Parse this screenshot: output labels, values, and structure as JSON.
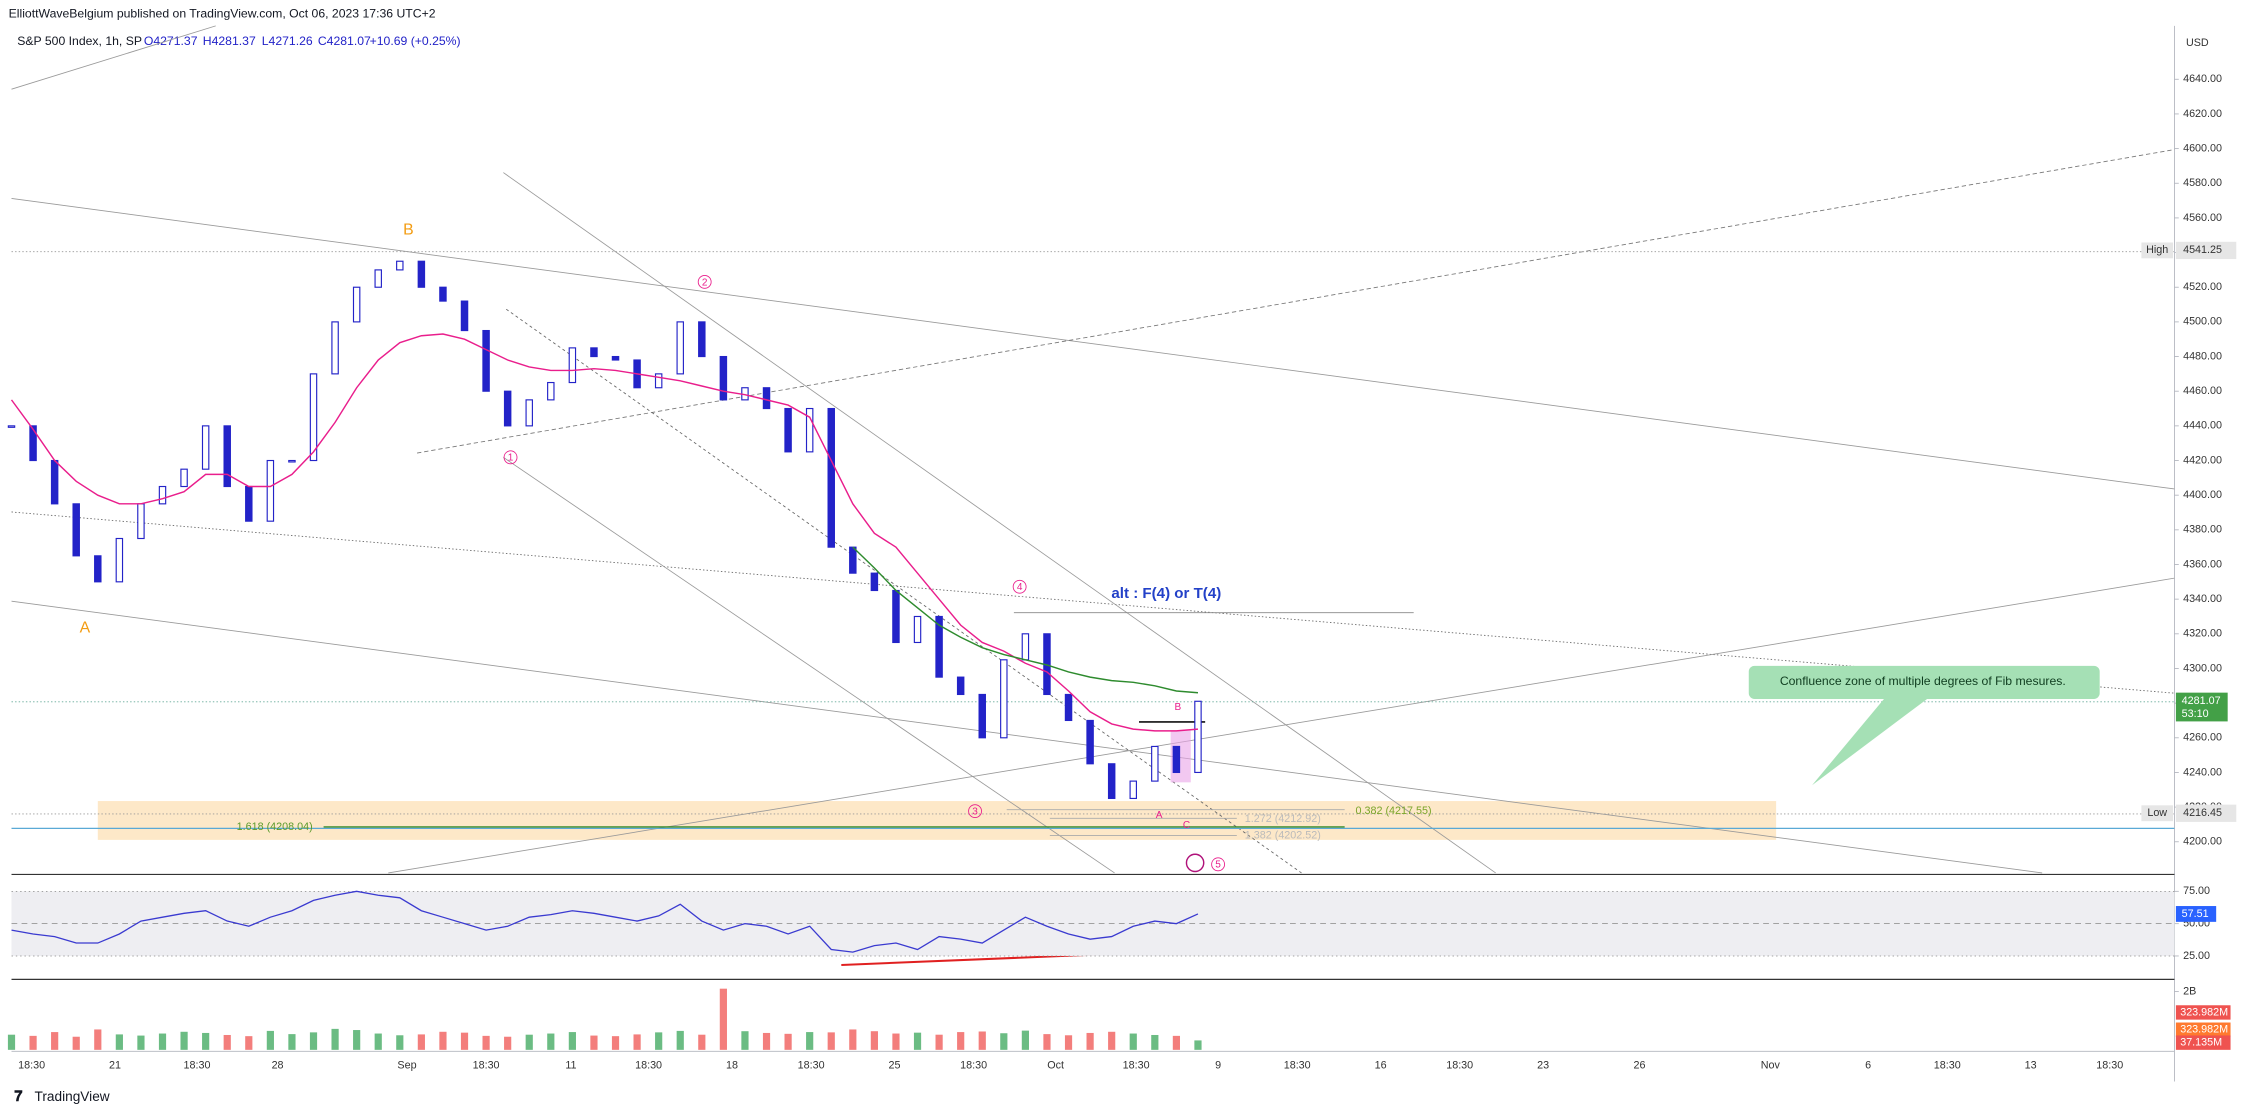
{
  "header": {
    "publisher": "ElliottWaveBelgium published on TradingView.com, Oct 06, 2023 17:36 UTC+2",
    "symbol": "S&P 500 Index, 1h, SP",
    "open": "O4271.37",
    "high": "H4281.37",
    "low": "L4271.26",
    "close": "C4281.07",
    "change": "+10.69 (+0.25%)"
  },
  "chart_data": [
    {
      "type": "candlestick",
      "currency": "USD",
      "ylim": [
        4182,
        4665
      ],
      "yticks": [
        {
          "value": 4200,
          "label": "4200.00"
        },
        {
          "value": 4220,
          "label": "4220.00"
        },
        {
          "value": 4240,
          "label": "4240.00"
        },
        {
          "value": 4260,
          "label": "4260.00"
        },
        {
          "value": 4280,
          "label": "4280.00"
        },
        {
          "value": 4300,
          "label": "4300.00"
        },
        {
          "value": 4320,
          "label": "4320.00"
        },
        {
          "value": 4340,
          "label": "4340.00"
        },
        {
          "value": 4360,
          "label": "4360.00"
        },
        {
          "value": 4380,
          "label": "4380.00"
        },
        {
          "value": 4400,
          "label": "4400.00"
        },
        {
          "value": 4420,
          "label": "4420.00"
        },
        {
          "value": 4440,
          "label": "4440.00"
        },
        {
          "value": 4460,
          "label": "4460.00"
        },
        {
          "value": 4480,
          "label": "4480.00"
        },
        {
          "value": 4500,
          "label": "4500.00"
        },
        {
          "value": 4520,
          "label": "4520.00"
        },
        {
          "value": 4540,
          "label": "4540.00"
        },
        {
          "value": 4560,
          "label": "4560.00"
        },
        {
          "value": 4580,
          "label": "4580.00"
        },
        {
          "value": 4600,
          "label": "4600.00"
        },
        {
          "value": 4620,
          "label": "4620.00"
        },
        {
          "value": 4640,
          "label": "4640.00"
        }
      ],
      "x_labels": [
        "18:30",
        "21",
        "18:30",
        "28",
        "Sep",
        "18:30",
        "11",
        "18:30",
        "18",
        "18:30",
        "25",
        "18:30",
        "Oct",
        "18:30",
        "9",
        "18:30",
        "16",
        "18:30",
        "23",
        "26",
        "Nov",
        "6",
        "18:30",
        "13",
        "18:30"
      ],
      "series": [
        {
          "style": "candles",
          "color": "#2323c8",
          "values": [
            4440,
            4420,
            4395,
            4365,
            4350,
            4375,
            4395,
            4405,
            4415,
            4440,
            4405,
            4385,
            4420,
            4420,
            4470,
            4500,
            4520,
            4530,
            4535,
            4520,
            4512,
            4495,
            4460,
            4440,
            4455,
            4465,
            4485,
            4480,
            4478,
            4462,
            4470,
            4500,
            4480,
            4455,
            4462,
            4450,
            4425,
            4450,
            4370,
            4355,
            4345,
            4315,
            4330,
            4295,
            4285,
            4260,
            4305,
            4320,
            4285,
            4270,
            4245,
            4225,
            4235,
            4255,
            4240,
            4281.07
          ]
        },
        {
          "style": "line",
          "color": "#e91e8c",
          "values": [
            4455,
            4438,
            4420,
            4408,
            4400,
            4395,
            4395,
            4398,
            4402,
            4412,
            4412,
            4405,
            4405,
            4412,
            4425,
            4442,
            4462,
            4478,
            4488,
            4492,
            4493,
            4490,
            4484,
            4478,
            4474,
            4472,
            4472,
            4473,
            4472,
            4470,
            4468,
            4466,
            4463,
            4460,
            4458,
            4455,
            4452,
            4445,
            4420,
            4395,
            4378,
            4370,
            4355,
            4340,
            4325,
            4315,
            4310,
            4303,
            4298,
            4287,
            4275,
            4268,
            4265,
            4264,
            4264,
            4265
          ]
        },
        {
          "style": "line",
          "color": "#2e8b2e",
          "values": [
            null,
            null,
            null,
            null,
            null,
            null,
            null,
            null,
            null,
            null,
            null,
            null,
            null,
            null,
            null,
            null,
            null,
            null,
            null,
            null,
            null,
            null,
            null,
            null,
            null,
            null,
            null,
            null,
            null,
            null,
            null,
            null,
            null,
            null,
            null,
            null,
            null,
            null,
            null,
            4370,
            4358,
            4345,
            4335,
            4325,
            4318,
            4312,
            4308,
            4305,
            4302,
            4298,
            4295,
            4293,
            4292,
            4290,
            4287,
            4286
          ]
        }
      ],
      "high_marker": {
        "label": "High",
        "value": 4541.25
      },
      "low_marker": {
        "label": "Low",
        "value": 4216.45
      },
      "last_price": 4281.07,
      "countdown": "53:10",
      "annotations": {
        "wave_a": "A",
        "wave_b": "B",
        "w1": "1",
        "w2": "2",
        "w3": "3",
        "w4": "4",
        "w5": "5",
        "alt": "alt : F(4) or T(4)",
        "fib_1618": "1.618 (4208.04)",
        "fib_0382": "0.382 (4217.55)",
        "fib_1272": "1.272 (4212.92)",
        "fib_1382": "1.382 (4202.52)",
        "sub_a": "A",
        "sub_b": "B",
        "sub_c": "C",
        "callout": "Confluence zone of multiple degrees of Fib mesures."
      }
    },
    {
      "type": "line",
      "color": "#3a3ad0",
      "ylim": [
        8,
        87
      ],
      "yticks": [
        {
          "value": 25,
          "label": "25.00"
        },
        {
          "value": 50,
          "label": "50.00"
        },
        {
          "value": 75,
          "label": "75.00"
        }
      ],
      "values": [
        45,
        42,
        40,
        35,
        35,
        42,
        52,
        55,
        58,
        60,
        52,
        48,
        55,
        60,
        68,
        72,
        75,
        72,
        70,
        60,
        55,
        50,
        45,
        48,
        55,
        57,
        60,
        58,
        55,
        52,
        56,
        65,
        52,
        45,
        50,
        48,
        42,
        48,
        30,
        28,
        33,
        35,
        30,
        40,
        38,
        35,
        45,
        55,
        48,
        42,
        38,
        40,
        48,
        52,
        50,
        57.51
      ],
      "last_value": 57.51
    },
    {
      "type": "bar",
      "ylim": [
        0,
        2370000000
      ],
      "yticks": [
        {
          "value": 2000000000,
          "label": "2B"
        }
      ],
      "values": [
        520000000,
        480000000,
        610000000,
        450000000,
        700000000,
        530000000,
        490000000,
        560000000,
        620000000,
        580000000,
        510000000,
        470000000,
        650000000,
        540000000,
        600000000,
        720000000,
        680000000,
        560000000,
        500000000,
        530000000,
        620000000,
        590000000,
        480000000,
        450000000,
        520000000,
        560000000,
        610000000,
        490000000,
        470000000,
        530000000,
        600000000,
        650000000,
        520000000,
        2100000000,
        640000000,
        580000000,
        550000000,
        610000000,
        600000000,
        700000000,
        640000000,
        560000000,
        590000000,
        520000000,
        610000000,
        630000000,
        570000000,
        660000000,
        540000000,
        500000000,
        580000000,
        620000000,
        560000000,
        510000000,
        480000000,
        323982000
      ],
      "markers": [
        {
          "value": 323982000,
          "label": "323.982M"
        },
        {
          "value": 323982000,
          "label": "323.982M"
        },
        {
          "value": 37135000,
          "label": "37.135M"
        }
      ]
    }
  ],
  "footer": {
    "brand": "TradingView"
  }
}
